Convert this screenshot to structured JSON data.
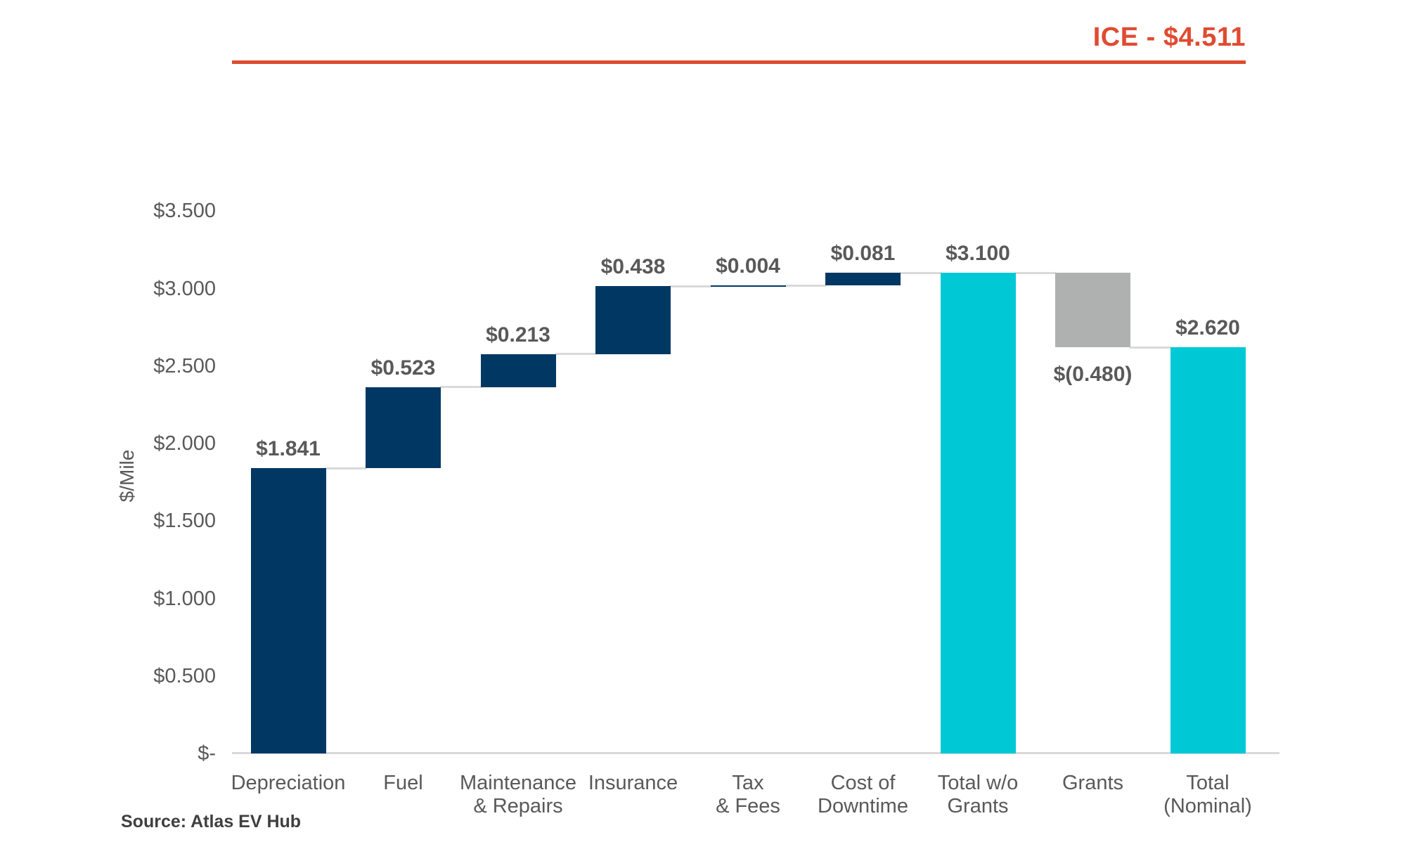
{
  "chart_data": {
    "type": "waterfall-bar",
    "title": "ICE - $4.511",
    "comparison_annotation": {
      "label": "ICE - $4.511",
      "value": 4.511
    },
    "ylabel": "$/Mile",
    "source": "Source: Atlas EV Hub",
    "ylim": [
      0,
      3.5
    ],
    "grid": "off",
    "y_ticks": [
      {
        "label": "$3.500",
        "value": 3.5
      },
      {
        "label": "$3.000",
        "value": 3.0
      },
      {
        "label": "$2.500",
        "value": 2.5
      },
      {
        "label": "$2.000",
        "value": 2.0
      },
      {
        "label": "$1.500",
        "value": 1.5
      },
      {
        "label": "$1.000",
        "value": 1.0
      },
      {
        "label": "$0.500",
        "value": 0.5
      },
      {
        "label": "$-",
        "value": 0.0
      }
    ],
    "bars": [
      {
        "name": "depreciation",
        "label_lines": [
          "Depreciation"
        ],
        "value": 1.841,
        "display_value": "$1.841",
        "start": 0.0,
        "end": 1.841,
        "role": "increase",
        "value_label_position": "above"
      },
      {
        "name": "fuel",
        "label_lines": [
          "Fuel"
        ],
        "value": 0.523,
        "display_value": "$0.523",
        "start": 1.841,
        "end": 2.364,
        "role": "increase",
        "value_label_position": "above"
      },
      {
        "name": "maintenance-repairs",
        "label_lines": [
          "Maintenance",
          "& Repairs"
        ],
        "value": 0.213,
        "display_value": "$0.213",
        "start": 2.364,
        "end": 2.577,
        "role": "increase",
        "value_label_position": "above"
      },
      {
        "name": "insurance",
        "label_lines": [
          "Insurance"
        ],
        "value": 0.438,
        "display_value": "$0.438",
        "start": 2.577,
        "end": 3.015,
        "role": "increase",
        "value_label_position": "above"
      },
      {
        "name": "tax-fees",
        "label_lines": [
          "Tax",
          "& Fees"
        ],
        "value": 0.004,
        "display_value": "$0.004",
        "start": 3.015,
        "end": 3.019,
        "role": "increase",
        "value_label_position": "above"
      },
      {
        "name": "cost-of-downtime",
        "label_lines": [
          "Cost of",
          "Downtime"
        ],
        "value": 0.081,
        "display_value": "$0.081",
        "start": 3.019,
        "end": 3.1,
        "role": "increase",
        "value_label_position": "above"
      },
      {
        "name": "total-wo-grants",
        "label_lines": [
          "Total w/o",
          "Grants"
        ],
        "value": 3.1,
        "display_value": "$3.100",
        "start": 0.0,
        "end": 3.1,
        "role": "total",
        "value_label_position": "above"
      },
      {
        "name": "grants",
        "label_lines": [
          "Grants"
        ],
        "value": -0.48,
        "display_value": "$(0.480)",
        "start": 3.1,
        "end": 2.62,
        "role": "decrease",
        "value_label_position": "below"
      },
      {
        "name": "total-nominal",
        "label_lines": [
          "Total",
          "(Nominal)"
        ],
        "value": 2.62,
        "display_value": "$2.620",
        "start": 0.0,
        "end": 2.62,
        "role": "total",
        "value_label_position": "above"
      }
    ],
    "colors": {
      "increase": "#003863",
      "decrease": "#AFB1B1",
      "total": "#00C9D6",
      "annotation": "#E04B31",
      "connector": "#D9D9D9",
      "axis": "#D9D9D9",
      "text": "#595959",
      "source_text": "#3F3F3F"
    }
  }
}
